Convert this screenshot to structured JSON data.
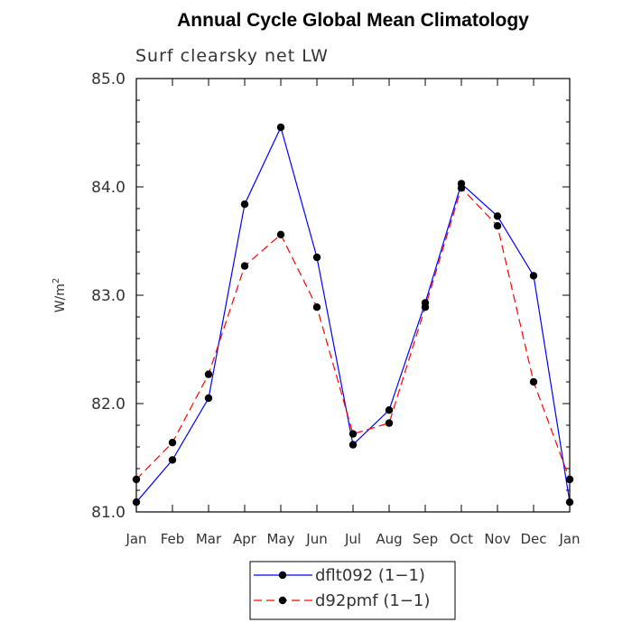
{
  "chart_data": {
    "type": "line",
    "title": "Annual Cycle Global Mean Climatology",
    "subtitle": "Surf clearsky net LW",
    "ylabel": "W/m",
    "ylabel_superscript": "2",
    "ylim": [
      81.0,
      85.0
    ],
    "yticks": [
      "81.0",
      "82.0",
      "83.0",
      "84.0",
      "85.0"
    ],
    "categories": [
      "Jan",
      "Feb",
      "Mar",
      "Apr",
      "May",
      "Jun",
      "Jul",
      "Aug",
      "Sep",
      "Oct",
      "Nov",
      "Dec",
      "Jan"
    ],
    "series": [
      {
        "name": "dflt092 (1−1)",
        "color": "#0000ff",
        "dash": "solid",
        "values": [
          81.09,
          81.48,
          82.05,
          83.84,
          84.55,
          83.35,
          81.62,
          81.94,
          82.93,
          84.03,
          83.73,
          83.18,
          81.09
        ]
      },
      {
        "name": "d92pmf (1−1)",
        "color": "#ff0000",
        "dash": "dashed",
        "values": [
          81.3,
          81.64,
          82.27,
          83.27,
          83.56,
          82.89,
          81.72,
          81.82,
          82.89,
          83.99,
          83.64,
          82.2,
          81.3
        ]
      }
    ],
    "legend": "bottom-center"
  }
}
